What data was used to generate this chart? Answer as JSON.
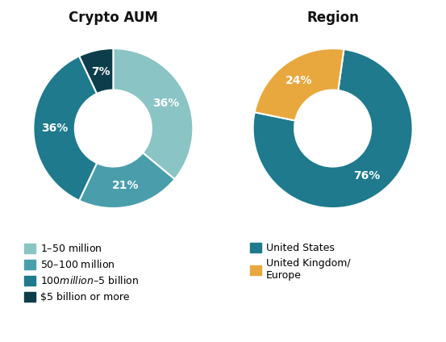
{
  "aum_values": [
    36,
    21,
    36,
    7
  ],
  "aum_colors": [
    "#8ac4c4",
    "#4a9eac",
    "#1e7a8c",
    "#0d3d4a"
  ],
  "aum_labels": [
    "36%",
    "21%",
    "36%",
    "7%"
  ],
  "aum_startangle": 90,
  "aum_legend": [
    "$1–$50 million",
    "$50–$100 million",
    "$100 million–$5 billion",
    "$5 billion or more"
  ],
  "aum_title": "Crypto AUM",
  "region_values": [
    76,
    24
  ],
  "region_colors": [
    "#1e7a8c",
    "#e8a83e"
  ],
  "region_labels": [
    "76%",
    "24%"
  ],
  "region_startangle": 82,
  "region_legend": [
    "United States",
    "United Kingdom/\nEurope"
  ],
  "region_title": "Region",
  "label_color": "#ffffff",
  "title_fontsize": 12,
  "label_fontsize": 10,
  "legend_fontsize": 9,
  "bg_color": "#ffffff"
}
